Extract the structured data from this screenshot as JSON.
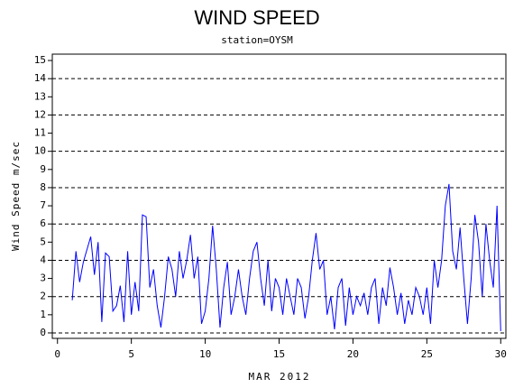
{
  "chart_data": {
    "type": "line",
    "title": "WIND SPEED",
    "subtitle": "station=OYSM",
    "y_label": "Wind Speed m/sec",
    "x_label": "MAR 2012",
    "xlim": [
      -0.35,
      30.35
    ],
    "xticks": [
      0,
      5,
      10,
      15,
      20,
      25,
      30
    ],
    "ylim": [
      -0.3,
      15.35
    ],
    "yticks": [
      0,
      1,
      2,
      3,
      4,
      5,
      6,
      7,
      8,
      9,
      10,
      11,
      12,
      13,
      14,
      15
    ],
    "grid_y": [
      0,
      2,
      4,
      6,
      8,
      10,
      12,
      14
    ],
    "x": [
      1,
      1.25,
      1.5,
      1.75,
      2,
      2.25,
      2.5,
      2.75,
      3,
      3.25,
      3.5,
      3.75,
      4,
      4.25,
      4.5,
      4.75,
      5,
      5.25,
      5.5,
      5.75,
      6,
      6.25,
      6.5,
      6.75,
      7,
      7.25,
      7.5,
      7.75,
      8,
      8.25,
      8.5,
      8.75,
      9,
      9.25,
      9.5,
      9.75,
      10,
      10.25,
      10.5,
      10.75,
      11,
      11.25,
      11.5,
      11.75,
      12,
      12.25,
      12.5,
      12.75,
      13,
      13.25,
      13.5,
      13.75,
      14,
      14.25,
      14.5,
      14.75,
      15,
      15.25,
      15.5,
      15.75,
      16,
      16.25,
      16.5,
      16.75,
      17,
      17.25,
      17.5,
      17.75,
      18,
      18.25,
      18.5,
      18.75,
      19,
      19.25,
      19.5,
      19.75,
      20,
      20.25,
      20.5,
      20.75,
      21,
      21.25,
      21.5,
      21.75,
      22,
      22.25,
      22.5,
      22.75,
      23,
      23.25,
      23.5,
      23.75,
      24,
      24.25,
      24.5,
      24.75,
      25,
      25.25,
      25.5,
      25.75,
      26,
      26.25,
      26.5,
      26.75,
      27,
      27.25,
      27.5,
      27.75,
      28,
      28.25,
      28.5,
      28.75,
      29,
      29.25,
      29.5,
      29.75,
      30
    ],
    "series": [
      {
        "color": "#0000ff",
        "values": [
          1.8,
          4.5,
          2.8,
          3.9,
          4.6,
          5.3,
          3.2,
          5.0,
          0.6,
          4.4,
          4.2,
          1.2,
          1.5,
          2.6,
          0.6,
          4.5,
          1.0,
          2.8,
          1.2,
          6.5,
          6.4,
          2.5,
          3.5,
          1.5,
          0.3,
          2.0,
          4.2,
          3.5,
          2.0,
          4.5,
          3.0,
          4.0,
          5.4,
          3.0,
          4.2,
          0.5,
          1.2,
          3.0,
          5.9,
          3.5,
          0.3,
          2.5,
          3.9,
          1.0,
          2.0,
          3.5,
          2.0,
          1.0,
          3.0,
          4.5,
          5.0,
          3.0,
          1.5,
          4.0,
          1.2,
          3.0,
          2.5,
          1.0,
          3.0,
          2.0,
          1.0,
          3.0,
          2.5,
          0.8,
          2.0,
          4.0,
          5.5,
          3.5,
          4.0,
          1.0,
          2.0,
          0.2,
          2.5,
          3.0,
          0.4,
          2.5,
          1.0,
          2.0,
          1.5,
          2.2,
          1.0,
          2.5,
          3.0,
          0.5,
          2.5,
          1.5,
          3.6,
          2.5,
          1.0,
          2.2,
          0.5,
          1.8,
          1.0,
          2.5,
          2.0,
          1.0,
          2.5,
          0.5,
          4.0,
          2.5,
          4.0,
          7.0,
          8.2,
          4.5,
          3.5,
          5.8,
          3.0,
          0.5,
          3.0,
          6.5,
          5.0,
          2.0,
          6.0,
          4.0,
          2.5,
          7.0,
          0.1
        ]
      }
    ]
  }
}
